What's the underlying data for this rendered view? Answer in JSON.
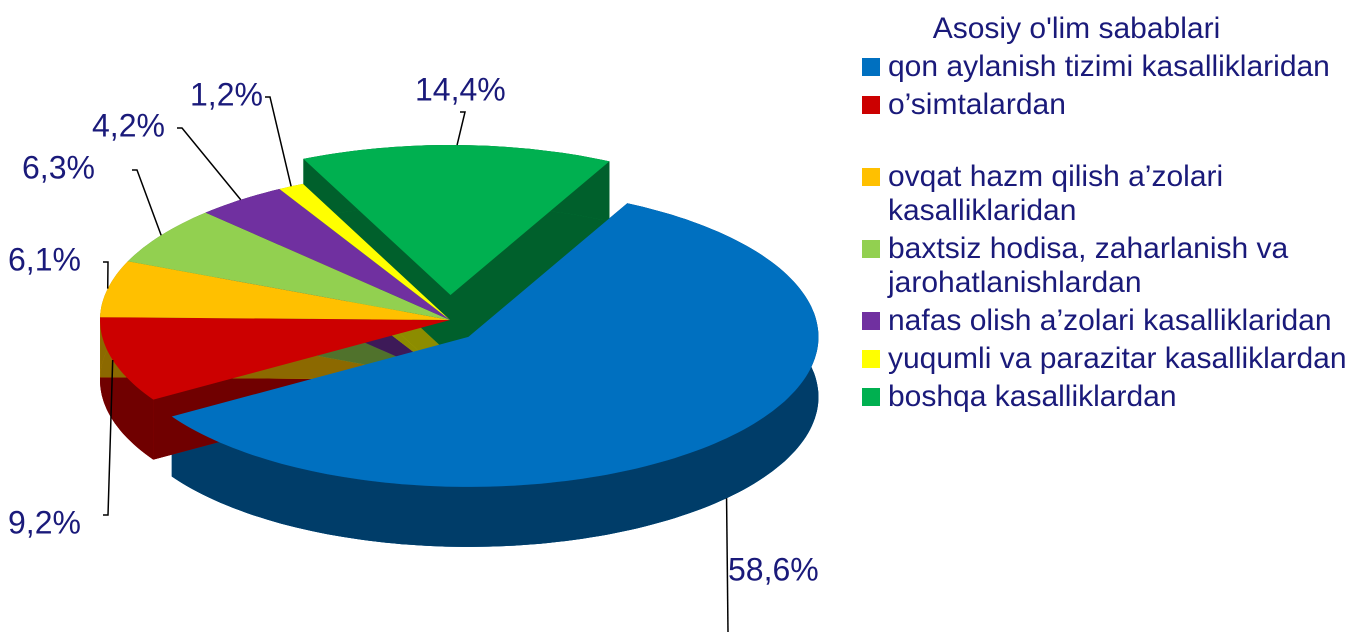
{
  "chart_data": {
    "type": "pie",
    "legend_title": "Asosiy o'lim sabablari",
    "categories": [
      "qon aylanish tizimi kasalliklaridan",
      "o’simtalardan",
      "ovqat hazm qilish a’zolari kasalliklaridan",
      "baxtsiz hodisa, zaharlanish va jarohatlanishlardan",
      "nafas olish a’zolari kasalliklaridan",
      "yuqumli va parazitar kasalliklardan",
      "boshqa kasalliklardan"
    ],
    "values": [
      58.6,
      9.2,
      6.1,
      6.3,
      4.2,
      1.2,
      14.4
    ],
    "value_labels": [
      "58,6%",
      "9,2%",
      "6,1%",
      "6,3%",
      "4,2%",
      "1,2%",
      "14,4%"
    ],
    "colors": [
      "#0070c0",
      "#cc0000",
      "#ffc000",
      "#92d050",
      "#7030a0",
      "#ffff00",
      "#00b050"
    ],
    "legend": "right"
  }
}
